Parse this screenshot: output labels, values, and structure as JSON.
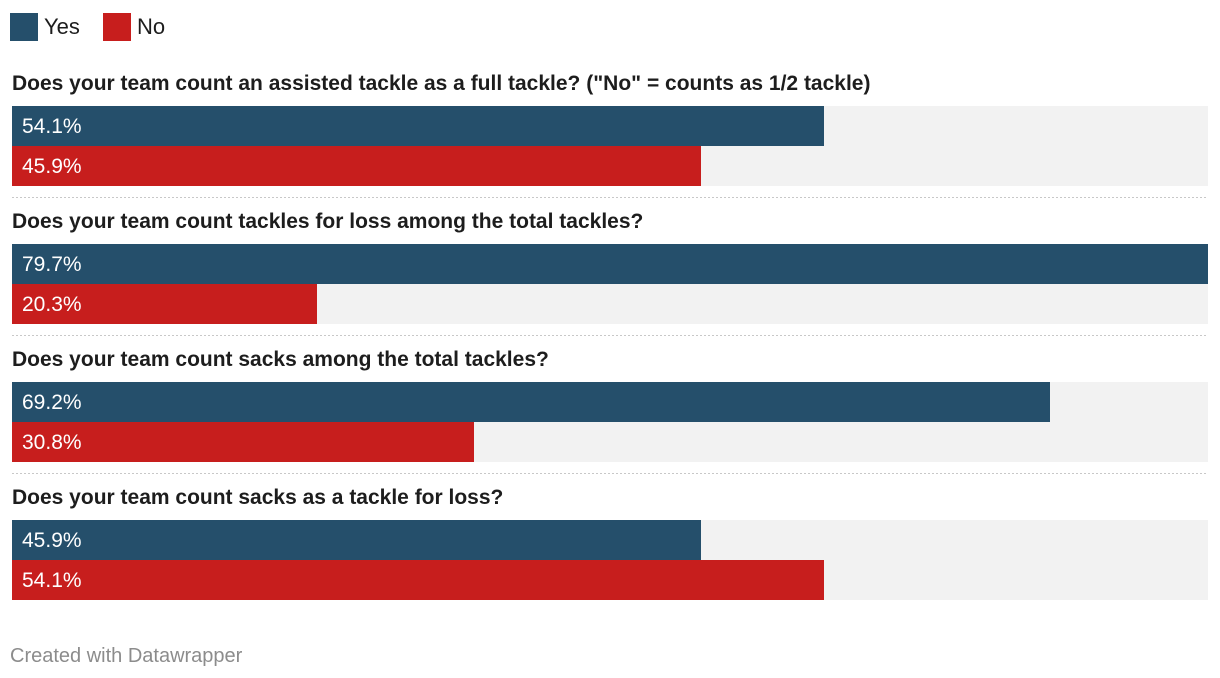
{
  "chart_data": {
    "type": "bar",
    "orientation": "horizontal",
    "value_suffix": "%",
    "xlim": [
      0,
      79.7
    ],
    "legend_position": "top-left",
    "grid": false,
    "series": [
      {
        "name": "Yes",
        "color": "#254f6b"
      },
      {
        "name": "No",
        "color": "#c71e1d"
      }
    ],
    "categories": [
      "Does your team count an assisted tackle as a full tackle? (\"No\" = counts as 1/2 tackle)",
      "Does your team count tackles for loss among the total tackles?",
      "Does your team count sacks among the total tackles?",
      "Does your team count sacks as a tackle for loss?"
    ],
    "values": [
      [
        54.1,
        45.9
      ],
      [
        79.7,
        20.3
      ],
      [
        69.2,
        30.8
      ],
      [
        45.9,
        54.1
      ]
    ]
  },
  "footer": {
    "credit": "Created with Datawrapper"
  }
}
